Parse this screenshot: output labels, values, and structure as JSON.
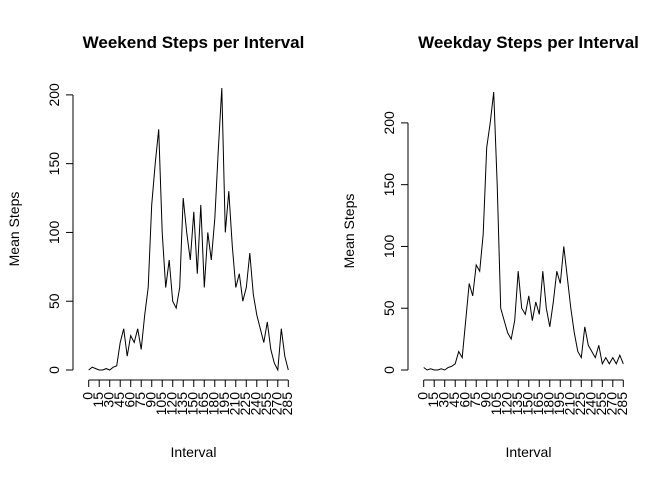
{
  "chart_data": [
    {
      "type": "line",
      "title": "Weekend Steps per Interval",
      "xlabel": "Interval",
      "ylabel": "Mean Steps",
      "color": "#000000",
      "x": [
        0,
        5,
        10,
        15,
        20,
        25,
        30,
        35,
        40,
        45,
        50,
        55,
        60,
        65,
        70,
        75,
        80,
        85,
        90,
        95,
        100,
        105,
        110,
        115,
        120,
        125,
        130,
        135,
        140,
        145,
        150,
        155,
        160,
        165,
        170,
        175,
        180,
        185,
        190,
        195,
        200,
        205,
        210,
        215,
        220,
        225,
        230,
        235,
        240,
        245,
        250,
        255,
        260,
        265,
        270,
        275,
        280,
        285
      ],
      "values": [
        0,
        2,
        1,
        0,
        0,
        1,
        0,
        2,
        3,
        20,
        30,
        10,
        25,
        20,
        30,
        15,
        40,
        60,
        120,
        150,
        175,
        100,
        60,
        80,
        50,
        45,
        60,
        125,
        100,
        80,
        115,
        70,
        120,
        60,
        100,
        80,
        110,
        160,
        205,
        100,
        130,
        90,
        60,
        70,
        50,
        60,
        85,
        55,
        40,
        30,
        20,
        35,
        15,
        5,
        0,
        30,
        10,
        0
      ],
      "xlim": [
        -11,
        296
      ],
      "ylim": [
        0,
        205
      ],
      "xticks": [
        0,
        15,
        30,
        45,
        60,
        75,
        90,
        105,
        120,
        135,
        150,
        165,
        180,
        195,
        210,
        225,
        240,
        255,
        270,
        285
      ],
      "yticks": [
        0,
        50,
        100,
        150,
        200
      ]
    },
    {
      "type": "line",
      "title": "Weekday Steps per Interval",
      "xlabel": "Interval",
      "ylabel": "Mean Steps",
      "color": "#000000",
      "x": [
        0,
        5,
        10,
        15,
        20,
        25,
        30,
        35,
        40,
        45,
        50,
        55,
        60,
        65,
        70,
        75,
        80,
        85,
        90,
        95,
        100,
        105,
        110,
        115,
        120,
        125,
        130,
        135,
        140,
        145,
        150,
        155,
        160,
        165,
        170,
        175,
        180,
        185,
        190,
        195,
        200,
        205,
        210,
        215,
        220,
        225,
        230,
        235,
        240,
        245,
        250,
        255,
        260,
        265,
        270,
        275,
        280,
        285
      ],
      "values": [
        2,
        0,
        1,
        0,
        0,
        1,
        0,
        2,
        3,
        5,
        15,
        10,
        40,
        70,
        60,
        85,
        80,
        110,
        180,
        200,
        225,
        150,
        50,
        40,
        30,
        25,
        40,
        80,
        50,
        45,
        60,
        40,
        55,
        45,
        80,
        50,
        35,
        55,
        80,
        70,
        100,
        75,
        50,
        30,
        15,
        10,
        35,
        20,
        15,
        10,
        20,
        5,
        10,
        5,
        10,
        5,
        12,
        5
      ],
      "xlim": [
        -11,
        296
      ],
      "ylim": [
        0,
        225
      ],
      "xticks": [
        0,
        15,
        30,
        45,
        60,
        75,
        90,
        105,
        120,
        135,
        150,
        165,
        180,
        195,
        210,
        225,
        240,
        255,
        270,
        285
      ],
      "yticks": [
        0,
        50,
        100,
        150,
        200
      ]
    }
  ]
}
